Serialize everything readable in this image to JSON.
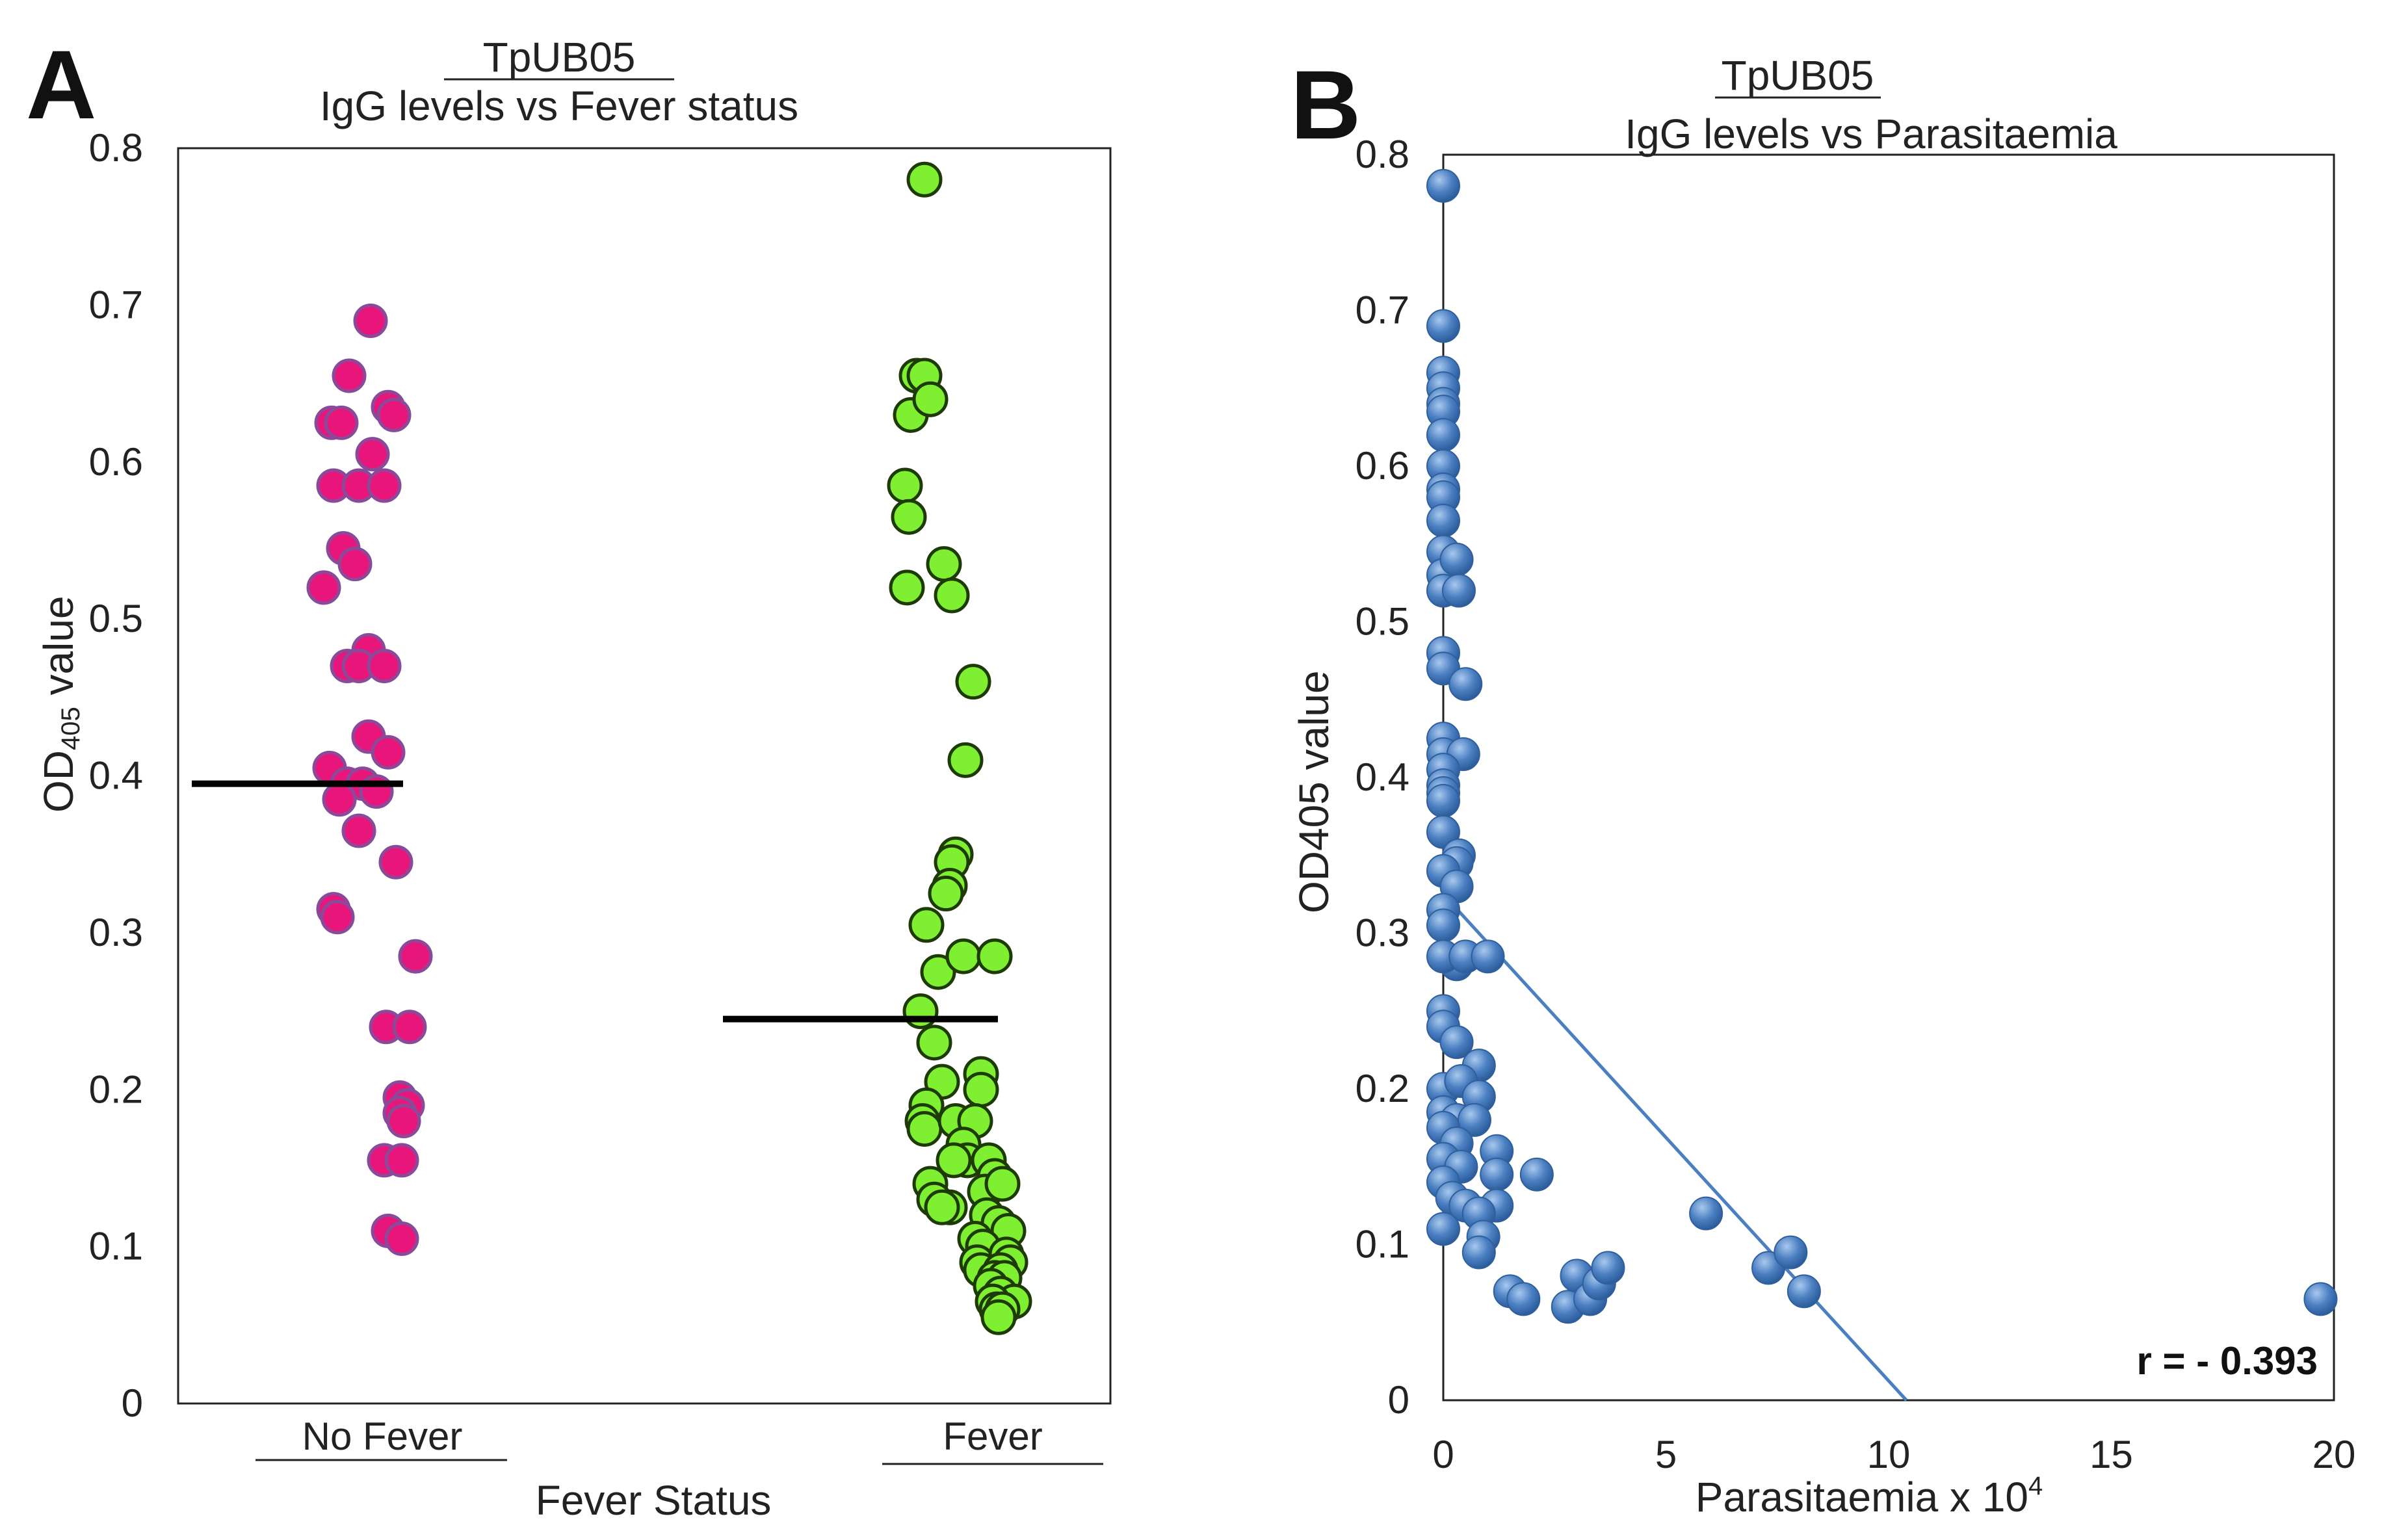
{
  "chart_data": [
    {
      "panel": "A",
      "type": "scatter",
      "title": "TpUB05",
      "subtitle": "IgG levels vs Fever status",
      "xlabel": "Fever Status",
      "ylabel_main": "OD",
      "ylabel_sub": "405",
      "ylabel_rest": " value",
      "ylim": [
        0,
        0.8
      ],
      "yticks": [
        "0",
        "0.1",
        "0.2",
        "0.3",
        "0.4",
        "0.5",
        "0.6",
        "0.7",
        "0.8"
      ],
      "categories": [
        "No Fever",
        "Fever"
      ],
      "series": [
        {
          "name": "No Fever",
          "color": "#e8157a",
          "median": 0.395,
          "points": [
            [
              -0.06,
              0.69
            ],
            [
              -0.17,
              0.655
            ],
            [
              -0.26,
              0.625
            ],
            [
              -0.21,
              0.625
            ],
            [
              0.03,
              0.635
            ],
            [
              0.06,
              0.63
            ],
            [
              -0.05,
              0.605
            ],
            [
              -0.25,
              0.585
            ],
            [
              -0.12,
              0.585
            ],
            [
              0.01,
              0.585
            ],
            [
              -0.2,
              0.545
            ],
            [
              -0.14,
              0.535
            ],
            [
              -0.3,
              0.52
            ],
            [
              -0.07,
              0.48
            ],
            [
              -0.18,
              0.47
            ],
            [
              -0.12,
              0.47
            ],
            [
              0.01,
              0.47
            ],
            [
              -0.07,
              0.425
            ],
            [
              0.03,
              0.415
            ],
            [
              -0.27,
              0.405
            ],
            [
              -0.18,
              0.395
            ],
            [
              -0.1,
              0.395
            ],
            [
              -0.03,
              0.39
            ],
            [
              -0.22,
              0.385
            ],
            [
              -0.12,
              0.365
            ],
            [
              0.07,
              0.345
            ],
            [
              -0.25,
              0.315
            ],
            [
              -0.23,
              0.31
            ],
            [
              0.17,
              0.285
            ],
            [
              0.02,
              0.24
            ],
            [
              0.14,
              0.24
            ],
            [
              0.09,
              0.195
            ],
            [
              0.13,
              0.19
            ],
            [
              0.09,
              0.185
            ],
            [
              0.11,
              0.18
            ],
            [
              0.01,
              0.155
            ],
            [
              0.1,
              0.155
            ],
            [
              0.03,
              0.11
            ],
            [
              0.1,
              0.105
            ]
          ]
        },
        {
          "name": "Fever",
          "color": "#7ef031",
          "median": 0.245,
          "points": [
            [
              -0.35,
              0.78
            ],
            [
              -0.39,
              0.655
            ],
            [
              -0.35,
              0.655
            ],
            [
              -0.42,
              0.63
            ],
            [
              -0.32,
              0.64
            ],
            [
              -0.45,
              0.585
            ],
            [
              -0.43,
              0.565
            ],
            [
              -0.25,
              0.535
            ],
            [
              -0.44,
              0.52
            ],
            [
              -0.21,
              0.515
            ],
            [
              -0.1,
              0.46
            ],
            [
              -0.14,
              0.41
            ],
            [
              -0.19,
              0.35
            ],
            [
              -0.21,
              0.345
            ],
            [
              -0.22,
              0.33
            ],
            [
              -0.24,
              0.325
            ],
            [
              -0.34,
              0.305
            ],
            [
              -0.28,
              0.275
            ],
            [
              -0.15,
              0.285
            ],
            [
              0.01,
              0.285
            ],
            [
              -0.37,
              0.25
            ],
            [
              -0.3,
              0.23
            ],
            [
              -0.06,
              0.21
            ],
            [
              -0.06,
              0.2
            ],
            [
              -0.26,
              0.205
            ],
            [
              -0.34,
              0.19
            ],
            [
              -0.36,
              0.18
            ],
            [
              -0.35,
              0.175
            ],
            [
              -0.19,
              0.18
            ],
            [
              -0.09,
              0.18
            ],
            [
              -0.15,
              0.165
            ],
            [
              -0.13,
              0.155
            ],
            [
              -0.2,
              0.155
            ],
            [
              -0.02,
              0.155
            ],
            [
              0.01,
              0.145
            ],
            [
              -0.32,
              0.14
            ],
            [
              -0.04,
              0.135
            ],
            [
              0.05,
              0.14
            ],
            [
              -0.3,
              0.13
            ],
            [
              -0.22,
              0.125
            ],
            [
              -0.26,
              0.125
            ],
            [
              -0.03,
              0.12
            ],
            [
              0.03,
              0.115
            ],
            [
              0.08,
              0.11
            ],
            [
              -0.09,
              0.105
            ],
            [
              -0.05,
              0.1
            ],
            [
              -0.08,
              0.09
            ],
            [
              -0.06,
              0.085
            ],
            [
              0.07,
              0.095
            ],
            [
              0.09,
              0.09
            ],
            [
              0.04,
              0.085
            ],
            [
              0.01,
              0.08
            ],
            [
              0.06,
              0.08
            ],
            [
              -0.01,
              0.075
            ],
            [
              0.04,
              0.07
            ],
            [
              0.11,
              0.065
            ],
            [
              0.0,
              0.065
            ],
            [
              0.02,
              0.06
            ],
            [
              0.05,
              0.06
            ],
            [
              0.03,
              0.055
            ]
          ]
        }
      ]
    },
    {
      "panel": "B",
      "type": "scatter",
      "title": "TpUB05",
      "subtitle": "IgG levels vs Parasitaemia",
      "xlabel_main": "Parasitaemia x 10",
      "xlabel_sup": "4",
      "ylabel": "OD405 value",
      "xlim": [
        0,
        20
      ],
      "ylim": [
        0,
        0.8
      ],
      "xticks": [
        "0",
        "5",
        "10",
        "15",
        "20"
      ],
      "yticks": [
        "0",
        "0.1",
        "0.2",
        "0.3",
        "0.4",
        "0.5",
        "0.6",
        "0.7",
        "0.8"
      ],
      "color": "#4a7fc1",
      "trendline": {
        "x": [
          0,
          10.4
        ],
        "y": [
          0.325,
          0
        ]
      },
      "annotation": "r = - 0.393",
      "points": [
        [
          0,
          0.78
        ],
        [
          0,
          0.69
        ],
        [
          0,
          0.66
        ],
        [
          0,
          0.65
        ],
        [
          0,
          0.64
        ],
        [
          0,
          0.635
        ],
        [
          0,
          0.62
        ],
        [
          0,
          0.6
        ],
        [
          0,
          0.585
        ],
        [
          0,
          0.58
        ],
        [
          0,
          0.565
        ],
        [
          0,
          0.545
        ],
        [
          0,
          0.53
        ],
        [
          0.3,
          0.54
        ],
        [
          0,
          0.52
        ],
        [
          0.35,
          0.52
        ],
        [
          0,
          0.48
        ],
        [
          0,
          0.47
        ],
        [
          0.5,
          0.46
        ],
        [
          0,
          0.425
        ],
        [
          0,
          0.415
        ],
        [
          0.45,
          0.415
        ],
        [
          0,
          0.405
        ],
        [
          0,
          0.395
        ],
        [
          0,
          0.39
        ],
        [
          0,
          0.385
        ],
        [
          0,
          0.365
        ],
        [
          0.35,
          0.35
        ],
        [
          0.3,
          0.345
        ],
        [
          0,
          0.34
        ],
        [
          0.3,
          0.33
        ],
        [
          0,
          0.315
        ],
        [
          0,
          0.305
        ],
        [
          0.3,
          0.28
        ],
        [
          0,
          0.285
        ],
        [
          0.5,
          0.285
        ],
        [
          1.0,
          0.285
        ],
        [
          0,
          0.25
        ],
        [
          0,
          0.24
        ],
        [
          0.3,
          0.23
        ],
        [
          0.8,
          0.215
        ],
        [
          0,
          0.2
        ],
        [
          0.4,
          0.205
        ],
        [
          0.8,
          0.195
        ],
        [
          0,
          0.185
        ],
        [
          0.3,
          0.18
        ],
        [
          0.7,
          0.18
        ],
        [
          0,
          0.175
        ],
        [
          0.3,
          0.165
        ],
        [
          1.2,
          0.16
        ],
        [
          0,
          0.155
        ],
        [
          0.4,
          0.15
        ],
        [
          1.2,
          0.145
        ],
        [
          2.1,
          0.145
        ],
        [
          0,
          0.14
        ],
        [
          0.2,
          0.13
        ],
        [
          0.5,
          0.125
        ],
        [
          1.2,
          0.125
        ],
        [
          0.8,
          0.12
        ],
        [
          0.9,
          0.105
        ],
        [
          0,
          0.11
        ],
        [
          0.8,
          0.095
        ],
        [
          5.9,
          0.12
        ],
        [
          1.5,
          0.07
        ],
        [
          1.8,
          0.065
        ],
        [
          2.8,
          0.06
        ],
        [
          3.0,
          0.08
        ],
        [
          3.3,
          0.065
        ],
        [
          3.5,
          0.075
        ],
        [
          3.7,
          0.085
        ],
        [
          7.3,
          0.085
        ],
        [
          7.8,
          0.095
        ],
        [
          8.1,
          0.07
        ],
        [
          19.7,
          0.065
        ]
      ]
    }
  ]
}
